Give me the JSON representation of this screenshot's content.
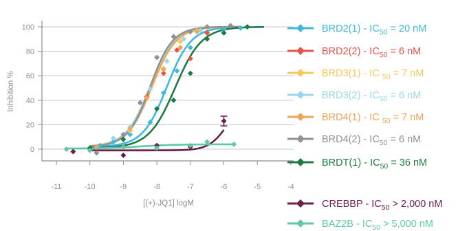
{
  "chart_data": {
    "type": "line",
    "title": "",
    "xlabel": "[(+)-JQ1] logM",
    "ylabel": "Inhibition %",
    "xlim": [
      -11,
      -4
    ],
    "ylim": [
      -5,
      105
    ],
    "xticks": [
      -11,
      -10,
      -9,
      -8,
      -7,
      -6,
      -5,
      -4
    ],
    "yticks": [
      0,
      20,
      40,
      60,
      80,
      100
    ],
    "grid": "horizontal",
    "legend_position": "right",
    "series": [
      {
        "name": "BRD2(1)",
        "ic50_prefix": "BRD2(1) - IC",
        "ic50_sub": "50",
        "ic50_value": " = 20 nM",
        "color": "#3fb8dc",
        "marker": "diamond",
        "x": [
          -9.7,
          -9.3,
          -8.8,
          -8.2,
          -7.8,
          -7.4,
          -7,
          -6.5,
          -6,
          -5.5
        ],
        "y": [
          3,
          6,
          12,
          22,
          46,
          64,
          83,
          95,
          98,
          99
        ],
        "fit": {
          "bottom": 2,
          "top": 100,
          "logIC50": -7.7,
          "hill": 1.2
        }
      },
      {
        "name": "BRD2(2)",
        "ic50_prefix": "BRD2(2) - IC",
        "ic50_sub": "50",
        "ic50_value": " = 6 nM",
        "color": "#e8524a",
        "marker": "diamond",
        "x": [
          -8.3,
          -7.8,
          -7.4,
          -7,
          -6.5
        ],
        "y": [
          43,
          62,
          81,
          74,
          95
        ],
        "fit": {
          "bottom": 2,
          "top": 100,
          "logIC50": -8.2,
          "hill": 1.2
        }
      },
      {
        "name": "BRD3(1)",
        "ic50_prefix": "BRD3(1) - IC ",
        "ic50_sub": "50",
        "ic50_value": " = 7 nM",
        "color": "#f7c95a",
        "marker": "diamond",
        "x": [
          -8.8,
          -8.3,
          -7.8,
          -7.3,
          -6.8
        ],
        "y": [
          15,
          42,
          66,
          88,
          97
        ],
        "fit": {
          "bottom": 2,
          "top": 100,
          "logIC50": -8.15,
          "hill": 1.2
        }
      },
      {
        "name": "BRD3(2)",
        "ic50_prefix": "BRD3(2) - IC",
        "ic50_sub": "50",
        "ic50_value": " = 6 nM",
        "color": "#9ad7e8",
        "marker": "diamond",
        "x": [
          -9.3,
          -8.8,
          -8.2,
          -7.7,
          -7.2,
          -6.7
        ],
        "y": [
          9,
          18,
          49,
          72,
          90,
          97
        ],
        "fit": {
          "bottom": 2,
          "top": 100,
          "logIC50": -8.2,
          "hill": 1.2
        }
      },
      {
        "name": "BRD4(1)",
        "ic50_prefix": "BRD4(1) - IC ",
        "ic50_sub": "50",
        "ic50_value": " = 7 nM",
        "color": "#f0a456",
        "marker": "diamond",
        "x": [
          -9.8,
          -8.8,
          -8.3,
          -7.8,
          -7.3,
          -6.8
        ],
        "y": [
          2,
          17,
          42,
          65,
          83,
          96
        ],
        "fit": {
          "bottom": 2,
          "top": 100,
          "logIC50": -8.15,
          "hill": 1.2
        }
      },
      {
        "name": "BRD4(2)",
        "ic50_prefix": "BRD4(2) - IC",
        "ic50_sub": "50",
        "ic50_value": " = 6 nM",
        "color": "#8e9394",
        "marker": "diamond",
        "x": [
          -9.8,
          -9,
          -8.5,
          -8,
          -7.5,
          -7,
          -6.5,
          -5.8
        ],
        "y": [
          -3,
          12,
          38,
          75,
          92,
          96,
          100,
          101
        ],
        "fit": {
          "bottom": 2,
          "top": 100,
          "logIC50": -8.2,
          "hill": 1.3
        }
      },
      {
        "name": "BRDT(1)",
        "ic50_prefix": "BRDT(1) - IC",
        "ic50_sub": "50",
        "ic50_value": " = 36 nM",
        "color": "#1f7a43",
        "marker": "diamond",
        "x": [
          -10,
          -9,
          -8,
          -7.5,
          -7,
          -6.5,
          -6,
          -5.3
        ],
        "y": [
          1,
          8,
          33,
          40,
          62,
          90,
          95,
          100
        ],
        "fit": {
          "bottom": 1,
          "top": 100,
          "logIC50": -7.45,
          "hill": 1.1
        }
      },
      {
        "name": "CREBBP",
        "ic50_prefix": "CREBBP - IC",
        "ic50_sub": "50",
        "ic50_value": " > 2,000 nM",
        "color": "#6b1d4c",
        "marker": "diamond",
        "x": [
          -10.5,
          -9,
          -8,
          -7,
          -6
        ],
        "y": [
          -2,
          -5,
          3,
          2,
          23
        ],
        "fit": {
          "bottom": -1,
          "top": 40,
          "logIC50": -5.9,
          "hill": 1.6
        }
      },
      {
        "name": "BAZ2B",
        "ic50_prefix": "BAZ2B - IC",
        "ic50_sub": "50",
        "ic50_value": " > 5,000 nM",
        "color": "#5ec9a4",
        "marker": "diamond",
        "x": [
          -10.7,
          -10,
          -9,
          -8,
          -7,
          -6.5,
          -5.7
        ],
        "y": [
          0,
          -1,
          2,
          1,
          3,
          6,
          4
        ],
        "fit": {
          "bottom": 0.5,
          "top": 4,
          "logIC50": -8.5,
          "hill": 0.8
        }
      }
    ]
  }
}
